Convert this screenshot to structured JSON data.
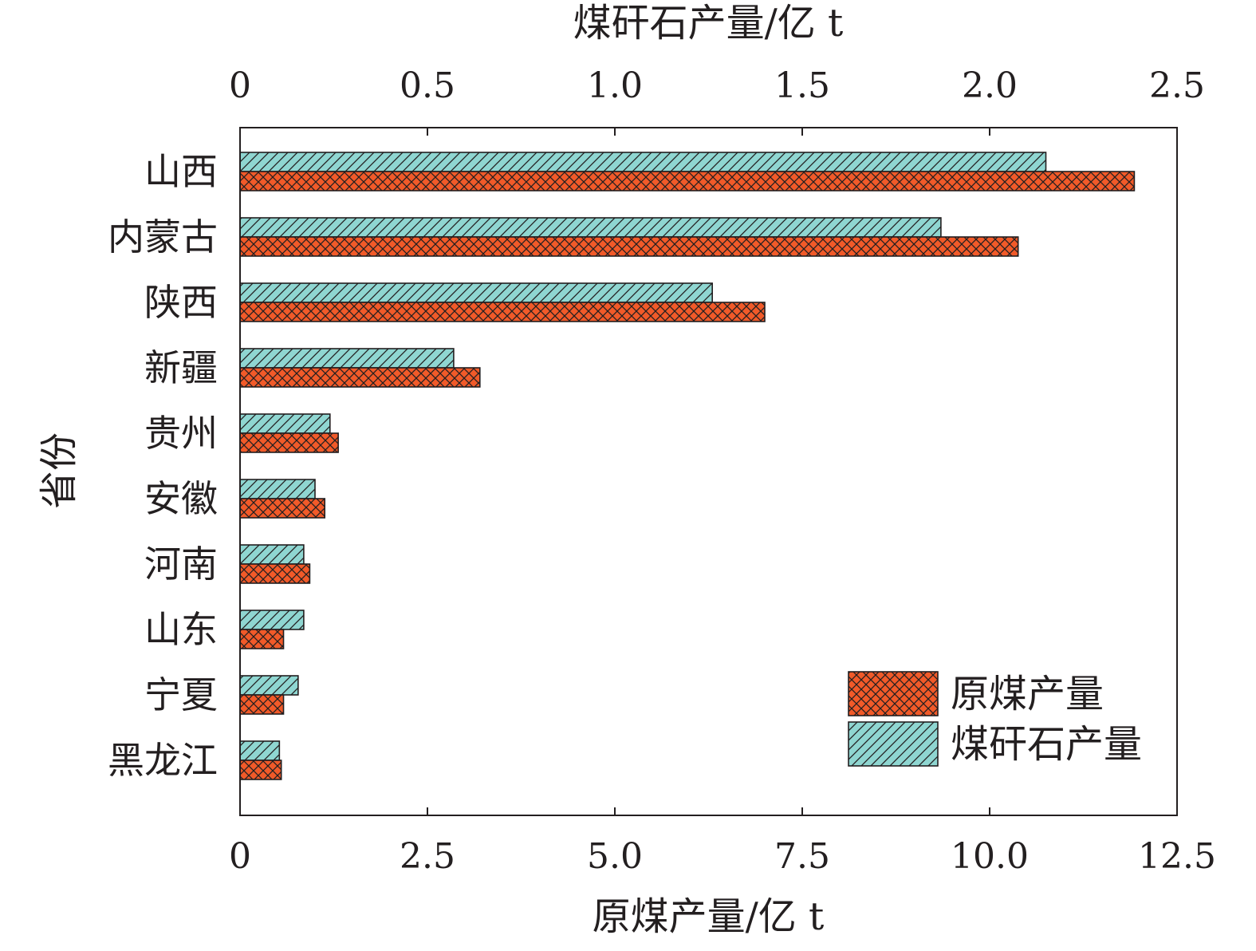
{
  "chart_data": {
    "type": "bar",
    "orientation": "horizontal",
    "categories": [
      "山西",
      "内蒙古",
      "陕西",
      "新疆",
      "贵州",
      "安徽",
      "河南",
      "山东",
      "宁夏",
      "黑龙江"
    ],
    "series": [
      {
        "name": "煤矸石产量",
        "axis": "top",
        "color": "#8fd6d1",
        "pattern": "diagonal-hatch",
        "values": [
          2.15,
          1.87,
          1.26,
          0.57,
          0.24,
          0.2,
          0.17,
          0.17,
          0.155,
          0.105
        ]
      },
      {
        "name": "原煤产量",
        "axis": "bottom",
        "color": "#f15a29",
        "pattern": "cross-hatch",
        "values": [
          11.93,
          10.38,
          7.0,
          3.2,
          1.31,
          1.13,
          0.93,
          0.58,
          0.58,
          0.55
        ]
      }
    ],
    "xaxis_bottom": {
      "label": "原煤产量/亿 t",
      "range": [
        0,
        12.5
      ],
      "ticks": [
        "0",
        "2.5",
        "5.0",
        "7.5",
        "10.0",
        "12.5"
      ]
    },
    "xaxis_top": {
      "label": "煤矸石产量/亿 t",
      "range": [
        0,
        2.5
      ],
      "ticks": [
        "0",
        "0.5",
        "1.0",
        "1.5",
        "2.0",
        "2.5"
      ]
    },
    "ylabel": "省份",
    "legend": {
      "placement": "bottom-right",
      "items": [
        "原煤产量",
        "煤矸石产量"
      ]
    },
    "grid": false
  }
}
